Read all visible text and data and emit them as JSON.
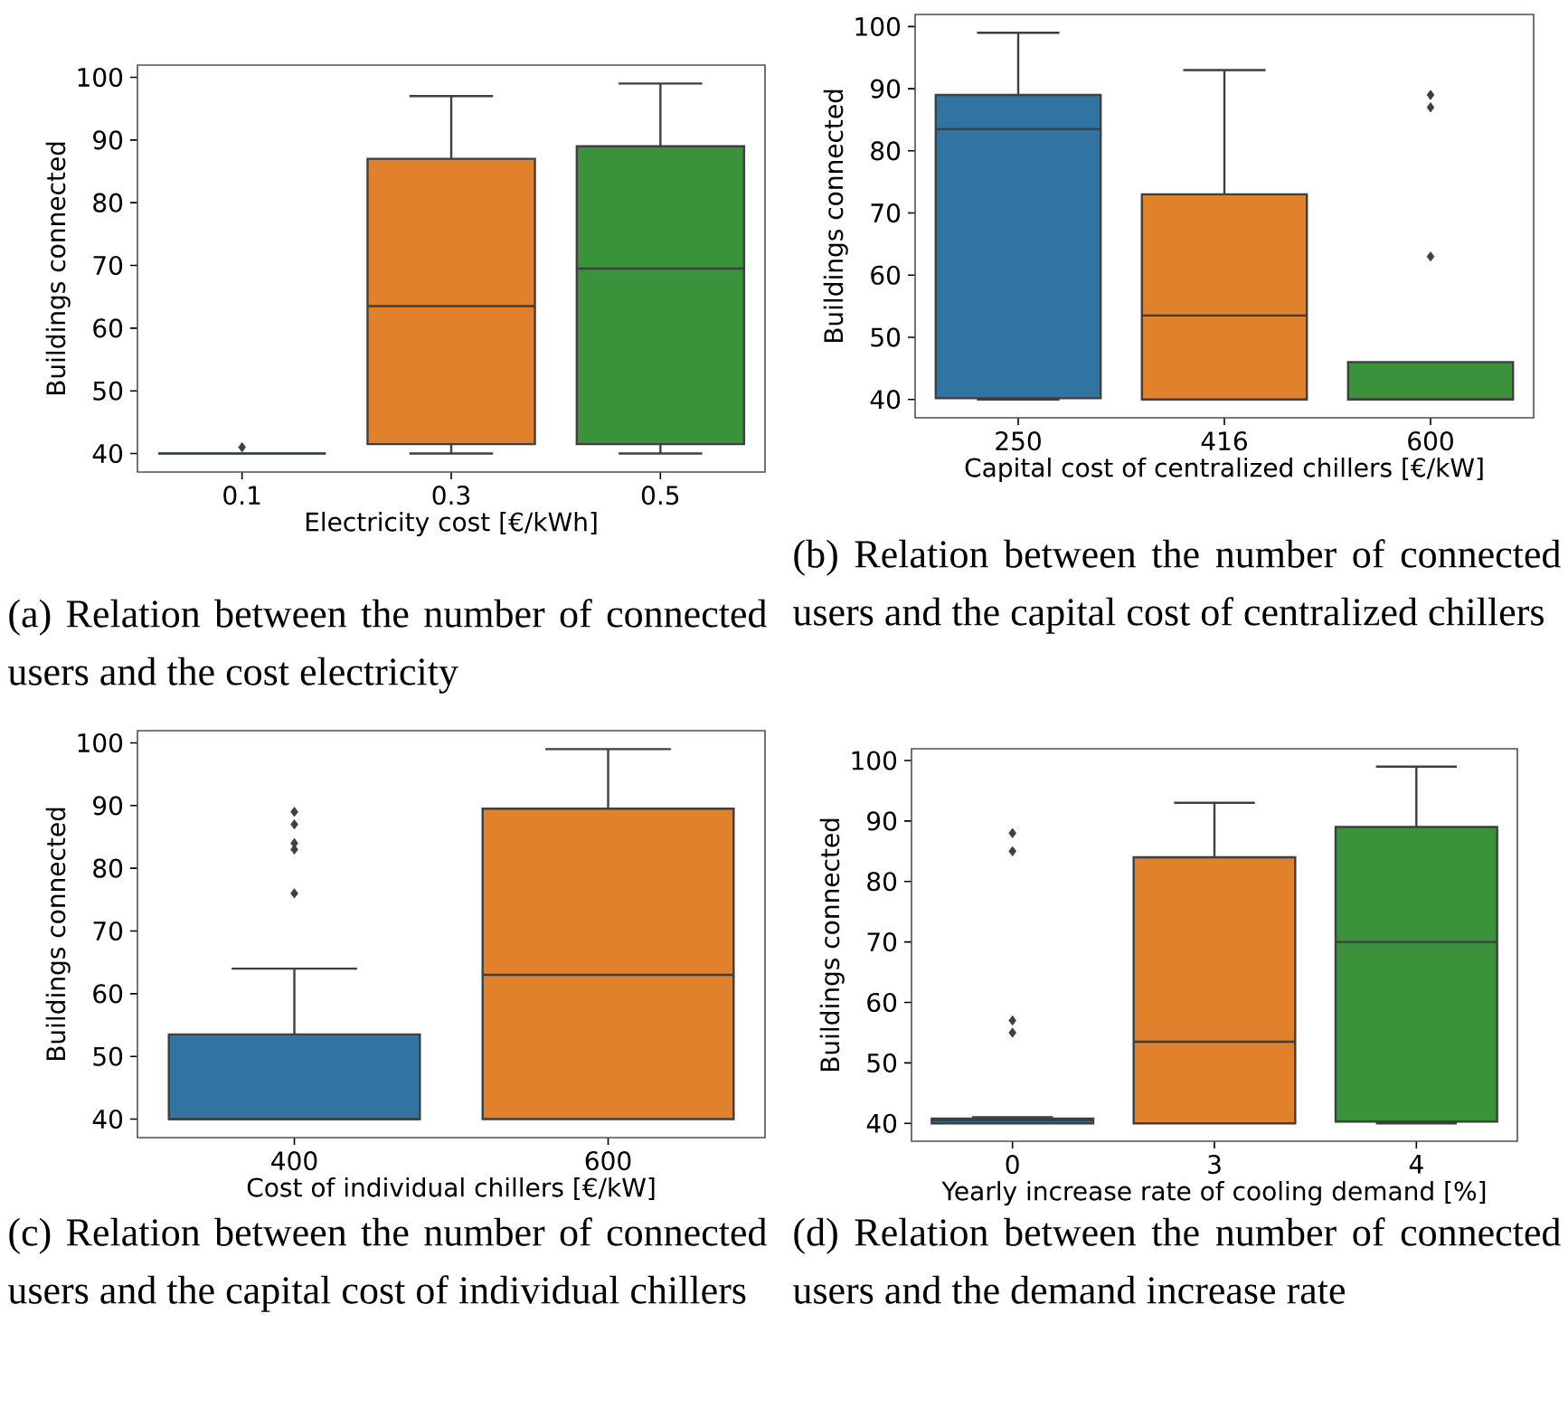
{
  "chart_data": [
    {
      "type": "box",
      "categories": [
        "0.1",
        "0.3",
        "0.5"
      ],
      "xlabel": "Electricity cost [€/kWh]",
      "ylabel": "Buildings connected",
      "ylim": [
        37.05,
        101.95
      ],
      "yticks": [
        40,
        50,
        60,
        70,
        80,
        90,
        100
      ],
      "colors": [
        "#3274a1",
        "#e1812c",
        "#3a923a"
      ],
      "boxes": [
        {
          "low": 40,
          "q1": 40,
          "median": 40,
          "q3": 40,
          "high": 40,
          "outliers": [
            41
          ]
        },
        {
          "low": 40,
          "q1": 41.5,
          "median": 63.5,
          "q3": 87,
          "high": 97
        },
        {
          "low": 40,
          "q1": 41.5,
          "median": 69.5,
          "q3": 89,
          "high": 99
        }
      ],
      "annotations": [
        "(a) Relation between the number of connected users and the cost electricity"
      ]
    },
    {
      "type": "box",
      "categories": [
        "250",
        "416",
        "600"
      ],
      "xlabel": "Capital cost of centralized chillers [€/kW]",
      "ylabel": "Buildings connected",
      "ylim": [
        37.05,
        101.95
      ],
      "yticks": [
        40,
        50,
        60,
        70,
        80,
        90,
        100
      ],
      "colors": [
        "#3274a1",
        "#e1812c",
        "#3a923a"
      ],
      "boxes": [
        {
          "low": 40,
          "q1": 40.2,
          "median": 83.5,
          "q3": 89,
          "high": 99
        },
        {
          "low": 40,
          "q1": 40,
          "median": 53.5,
          "q3": 73,
          "high": 93
        },
        {
          "low": 40,
          "q1": 40,
          "median": 40,
          "q3": 46,
          "high": 46,
          "outliers": [
            63,
            87,
            89
          ]
        }
      ],
      "annotations": [
        "(b) Relation between the number of connected users and the capital cost of centralized chillers"
      ]
    },
    {
      "type": "box",
      "categories": [
        "400",
        "600"
      ],
      "xlabel": "Cost of individual chillers [€/kW]",
      "ylabel": "Buildings connected",
      "ylim": [
        37.05,
        101.95
      ],
      "yticks": [
        40,
        50,
        60,
        70,
        80,
        90,
        100
      ],
      "colors": [
        "#3274a1",
        "#e1812c"
      ],
      "boxes": [
        {
          "low": 40,
          "q1": 40,
          "median": 40,
          "q3": 53.5,
          "high": 64,
          "outliers": [
            76,
            83,
            84,
            87,
            89
          ]
        },
        {
          "low": 40,
          "q1": 40,
          "median": 63,
          "q3": 89.5,
          "high": 99
        }
      ],
      "annotations": [
        "(c) Relation between the number of connected users and the capital cost of individual chillers"
      ]
    },
    {
      "type": "box",
      "categories": [
        "0",
        "3",
        "4"
      ],
      "xlabel": "Yearly increase rate of cooling demand [%]",
      "ylabel": "Buildings connected",
      "ylim": [
        37.05,
        101.95
      ],
      "yticks": [
        40,
        50,
        60,
        70,
        80,
        90,
        100
      ],
      "colors": [
        "#3274a1",
        "#e1812c",
        "#3a923a"
      ],
      "boxes": [
        {
          "low": 40,
          "q1": 40,
          "median": 40.5,
          "q3": 40.8,
          "high": 41,
          "outliers": [
            55,
            57,
            85,
            88
          ]
        },
        {
          "low": 40,
          "q1": 40,
          "median": 53.5,
          "q3": 84,
          "high": 93
        },
        {
          "low": 40,
          "q1": 40.3,
          "median": 70,
          "q3": 89,
          "high": 99
        }
      ],
      "annotations": [
        "(d) Relation between the number of connected users and the demand increase rate"
      ]
    }
  ]
}
